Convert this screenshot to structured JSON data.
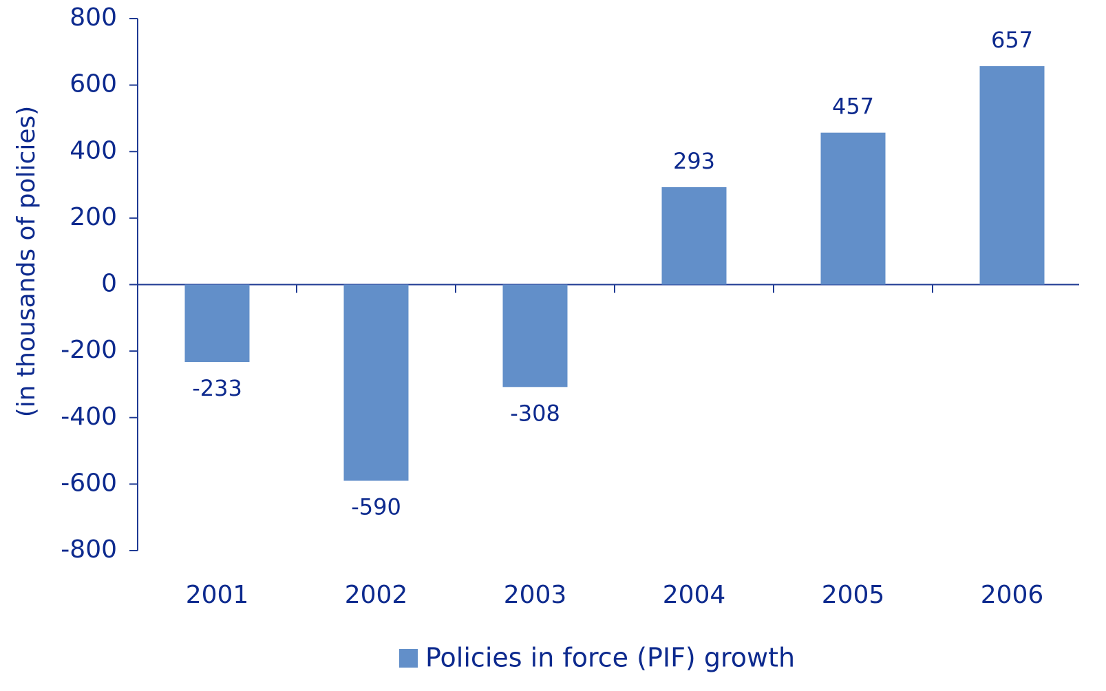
{
  "chart_data": {
    "type": "bar",
    "y_label": "(in thousands of policies)",
    "categories": [
      "2001",
      "2002",
      "2003",
      "2004",
      "2005",
      "2006"
    ],
    "series": [
      {
        "name": "Policies in force (PIF) growth",
        "color": "#628fc9",
        "values": [
          -233,
          -590,
          -308,
          293,
          457,
          657
        ]
      }
    ],
    "ylim": [
      -800,
      800
    ],
    "yticks": [
      -800,
      -600,
      -400,
      -200,
      0,
      200,
      400,
      600,
      800
    ],
    "legend": "bottom",
    "data_labels": true
  }
}
